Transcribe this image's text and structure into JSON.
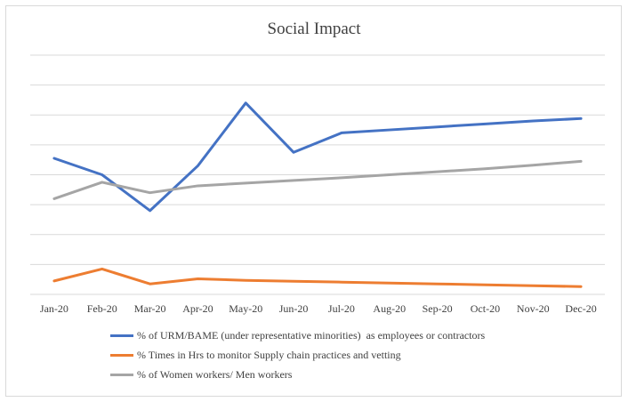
{
  "chart_data": {
    "type": "line",
    "title": "Social Impact",
    "categories": [
      "Jan-20",
      "Feb-20",
      "Mar-20",
      "Apr-20",
      "May-20",
      "Jun-20",
      "Jul-20",
      "Aug-20",
      "Sep-20",
      "Oct-20",
      "Nov-20",
      "Dec-20"
    ],
    "ylim": [
      0,
      8
    ],
    "grid": true,
    "legend_position": "bottom",
    "series": [
      {
        "name": "% of URM/BAME (under representative minorities)  as employees or contractors",
        "color": "#4472c4",
        "values": [
          4.55,
          4.0,
          2.8,
          4.3,
          6.4,
          4.75,
          5.4,
          5.5,
          5.6,
          5.7,
          5.8,
          5.88
        ]
      },
      {
        "name": "% Times in Hrs to monitor Supply chain practices and vetting",
        "color": "#ed7d31",
        "values": [
          0.45,
          0.85,
          0.35,
          0.52,
          0.47,
          0.44,
          0.41,
          0.38,
          0.35,
          0.32,
          0.29,
          0.26
        ]
      },
      {
        "name": "% of Women workers/ Men workers",
        "color": "#a5a5a5",
        "values": [
          3.2,
          3.75,
          3.4,
          3.63,
          3.72,
          3.81,
          3.9,
          4.0,
          4.1,
          4.2,
          4.32,
          4.45
        ]
      }
    ]
  }
}
